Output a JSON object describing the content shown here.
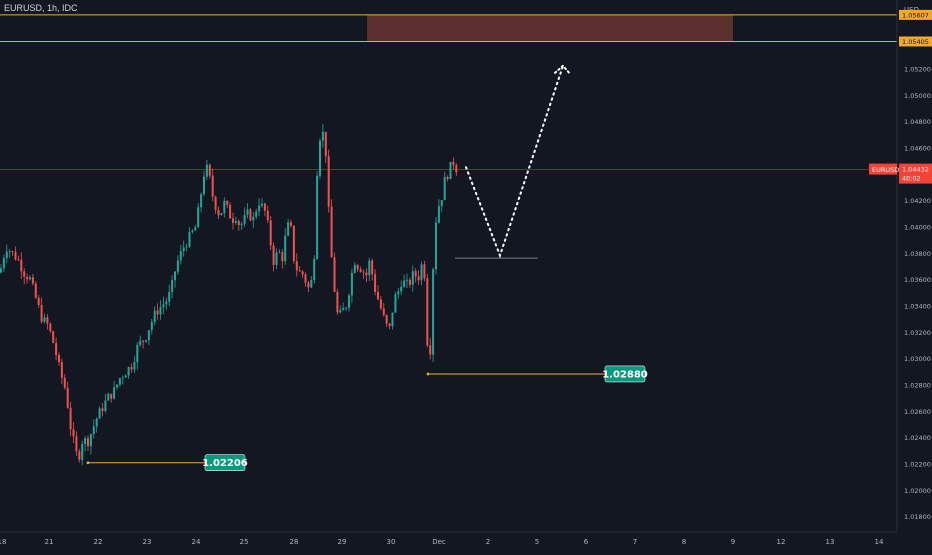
{
  "header": {
    "title": "EURUSD, 1h, IDC"
  },
  "chart_data": {
    "type": "candlestick",
    "symbol": "EURUSD",
    "timeframe": "1h",
    "source": "IDC",
    "currency_label": "USD",
    "colors": {
      "bullish": "#26a69a",
      "bearish": "#ef5350",
      "background": "#131722",
      "level_line": "#f0a830",
      "zone": "#5c2f2f",
      "current_price": "#f44336"
    },
    "y_axis": {
      "ylim": [
        1.0168,
        1.0572
      ],
      "tick_labels": [
        "1.01800",
        "1.02000",
        "1.02200",
        "1.02400",
        "1.02600",
        "1.02800",
        "1.03000",
        "1.03200",
        "1.03400",
        "1.03600",
        "1.03800",
        "1.04000",
        "1.04200",
        "1.04400",
        "1.04600",
        "1.04800",
        "1.05000",
        "1.05200"
      ],
      "tick_values": [
        1.018,
        1.02,
        1.022,
        1.024,
        1.026,
        1.028,
        1.03,
        1.032,
        1.034,
        1.036,
        1.038,
        1.04,
        1.042,
        1.044,
        1.046,
        1.048,
        1.05,
        1.052
      ]
    },
    "x_axis": {
      "tick_labels": [
        "18",
        "21",
        "22",
        "23",
        "24",
        "25",
        "28",
        "29",
        "30",
        "Dec",
        "2",
        "5",
        "6",
        "7",
        "8",
        "9",
        "12",
        "13",
        "14"
      ]
    },
    "current_price": {
      "symbol_label": "EURUSD",
      "value": "1.04432",
      "countdown": "40:02"
    },
    "resistance_zone": {
      "upper": 1.05607,
      "lower": 1.05405,
      "upper_label": "1.05607",
      "lower_label": "1.05405"
    },
    "price_labels": [
      {
        "value": 1.02206,
        "text": "1.02206"
      },
      {
        "value": 1.0288,
        "text": "1.02880"
      }
    ],
    "projection_low": 1.0378,
    "projection_target": 1.0522,
    "series": [
      {
        "name": "anchor_path",
        "points": [
          [
            0,
            1.0365
          ],
          [
            6,
            1.0385
          ],
          [
            12,
            1.038
          ],
          [
            18,
            1.0375
          ],
          [
            24,
            1.0365
          ],
          [
            30,
            1.036
          ],
          [
            36,
            1.0345
          ],
          [
            42,
            1.033
          ],
          [
            48,
            1.0325
          ],
          [
            54,
            1.031
          ],
          [
            60,
            1.029
          ],
          [
            66,
            1.0275
          ],
          [
            70,
            1.025
          ],
          [
            74,
            1.0235
          ],
          [
            78,
            1.0222
          ],
          [
            83,
            1.024
          ],
          [
            87,
            1.0235
          ],
          [
            92,
            1.0245
          ],
          [
            97,
            1.0255
          ],
          [
            102,
            1.0262
          ],
          [
            108,
            1.027
          ],
          [
            114,
            1.0275
          ],
          [
            120,
            1.0285
          ],
          [
            126,
            1.029
          ],
          [
            132,
            1.0295
          ],
          [
            138,
            1.031
          ],
          [
            145,
            1.0315
          ],
          [
            150,
            1.0325
          ],
          [
            156,
            1.0335
          ],
          [
            162,
            1.034
          ],
          [
            168,
            1.0345
          ],
          [
            172,
            1.0355
          ],
          [
            176,
            1.037
          ],
          [
            180,
            1.0378
          ],
          [
            184,
            1.0385
          ],
          [
            188,
            1.039
          ],
          [
            192,
            1.0395
          ],
          [
            196,
            1.04
          ],
          [
            200,
            1.042
          ],
          [
            204,
            1.044
          ],
          [
            208,
            1.0445
          ],
          [
            212,
            1.0425
          ],
          [
            216,
            1.0415
          ],
          [
            220,
            1.0408
          ],
          [
            224,
            1.0418
          ],
          [
            228,
            1.0412
          ],
          [
            232,
            1.0405
          ],
          [
            236,
            1.0408
          ],
          [
            240,
            1.04
          ],
          [
            244,
            1.0405
          ],
          [
            248,
            1.041
          ],
          [
            254,
            1.0405
          ],
          [
            258,
            1.042
          ],
          [
            262,
            1.0415
          ],
          [
            266,
            1.041
          ],
          [
            270,
            1.039
          ],
          [
            274,
            1.0372
          ],
          [
            278,
            1.0382
          ],
          [
            282,
            1.0375
          ],
          [
            286,
            1.0395
          ],
          [
            290,
            1.0405
          ],
          [
            294,
            1.0375
          ],
          [
            298,
            1.0365
          ],
          [
            302,
            1.0365
          ],
          [
            306,
            1.0358
          ],
          [
            310,
            1.035
          ],
          [
            314,
            1.0375
          ],
          [
            318,
            1.0462
          ],
          [
            322,
            1.0475
          ],
          [
            326,
            1.0455
          ],
          [
            330,
            1.039
          ],
          [
            334,
            1.0355
          ],
          [
            338,
            1.033
          ],
          [
            342,
            1.0335
          ],
          [
            346,
            1.034
          ],
          [
            350,
            1.0355
          ],
          [
            354,
            1.0375
          ],
          [
            358,
            1.037
          ],
          [
            362,
            1.0368
          ],
          [
            366,
            1.0362
          ],
          [
            370,
            1.0375
          ],
          [
            374,
            1.0355
          ],
          [
            378,
            1.0345
          ],
          [
            382,
            1.0335
          ],
          [
            386,
            1.0325
          ],
          [
            390,
            1.0322
          ],
          [
            394,
            1.0345
          ],
          [
            398,
            1.035
          ],
          [
            402,
            1.036
          ],
          [
            406,
            1.0355
          ],
          [
            410,
            1.0358
          ],
          [
            414,
            1.0365
          ],
          [
            418,
            1.036
          ],
          [
            422,
            1.0372
          ],
          [
            425,
            1.0362
          ],
          [
            428,
            1.0298
          ],
          [
            431,
            1.031
          ],
          [
            434,
            1.0395
          ],
          [
            437,
            1.041
          ],
          [
            440,
            1.042
          ],
          [
            443,
            1.0425
          ],
          [
            446,
            1.0442
          ],
          [
            449,
            1.0438
          ],
          [
            452,
            1.0452
          ],
          [
            455,
            1.0445
          ],
          [
            458,
            1.0443
          ]
        ]
      }
    ]
  }
}
